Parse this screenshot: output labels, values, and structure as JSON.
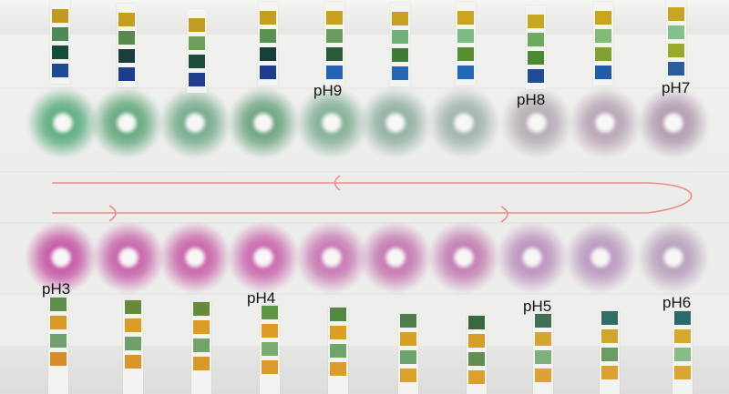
{
  "labels": {
    "top": [
      "pH9",
      "pH8",
      "pH7"
    ],
    "bottom": [
      "pH3",
      "pH4",
      "pH5",
      "pH6"
    ]
  },
  "colors": {
    "paper": "#efefed",
    "arrow": "#f08a86",
    "spot_green": "#6fb08c",
    "spot_magenta": "#c45aa4",
    "pad_yellow": "#c8a21a",
    "pad_orange": "#dc9826",
    "pad_green": "#5f9a5c",
    "pad_dark_green": "#1f4a2e",
    "pad_blue": "#1c4fa0"
  },
  "top_strips": [
    [
      "#c39a20",
      "#4e8a55",
      "#164a3a",
      "#1d4a93"
    ],
    [
      "#c59d1f",
      "#57894f",
      "#1c3d3d",
      "#1c3c8e"
    ],
    [
      "#c39b22",
      "#6b9f5a",
      "#1f4d3c",
      "#223f8f"
    ],
    [
      "#c59d1f",
      "#5d9153",
      "#183f36",
      "#1c3c90"
    ],
    [
      "#c7a31d",
      "#689d5f",
      "#2b5a3a",
      "#2362b4"
    ],
    [
      "#c6a11f",
      "#6fb27a",
      "#3f7a37",
      "#2567b4"
    ],
    [
      "#c8a51c",
      "#7bbb83",
      "#5a8e32",
      "#2368b8"
    ],
    [
      "#caa720",
      "#6fa860",
      "#4c8a32",
      "#214b97"
    ],
    [
      "#c9a51f",
      "#84b978",
      "#7fa231",
      "#1f5da8"
    ],
    [
      "#c8a420",
      "#84c089",
      "#9aa927",
      "#2a5d9e"
    ]
  ],
  "bottom_strips": [
    [
      "#5c8d4a",
      "#d99a24",
      "#6fa06e",
      "#d88a26"
    ],
    [
      "#678a3a",
      "#de9c26",
      "#6fa06c",
      "#d9952a"
    ],
    [
      "#658a3c",
      "#dc9a26",
      "#73a26b",
      "#da972a"
    ],
    [
      "#5e9646",
      "#de9b26",
      "#77ad72",
      "#db9a2b"
    ],
    [
      "#558943",
      "#dc9f26",
      "#6fa46a",
      "#dc9b2c"
    ],
    [
      "#4f7d4d",
      "#d8a126",
      "#6ea26c",
      "#dca02e"
    ],
    [
      "#39683e",
      "#d59d28",
      "#5f8f53",
      "#dca12c"
    ],
    [
      "#3d7057",
      "#d4a72a",
      "#7eb07d",
      "#dda231"
    ],
    [
      "#2f6d65",
      "#d2a62c",
      "#6a9c63",
      "#dba232"
    ],
    [
      "#2a6a6a",
      "#d4a92c",
      "#88bc86",
      "#dca532"
    ]
  ],
  "top_spots": [
    "#5fae82",
    "#67aa80",
    "#78ac8e",
    "#6fa583",
    "#86b199",
    "#93b2a3",
    "#a3b5ad",
    "#b6aeb6",
    "#b8a6b6",
    "#b39db0"
  ],
  "bottom_spots": [
    "#c65aa6",
    "#c765ab",
    "#c966ab",
    "#cb6ab0",
    "#c97ab4",
    "#c57ab2",
    "#c480b3",
    "#bd94bf",
    "#bb9bc0",
    "#b9a3bd"
  ]
}
